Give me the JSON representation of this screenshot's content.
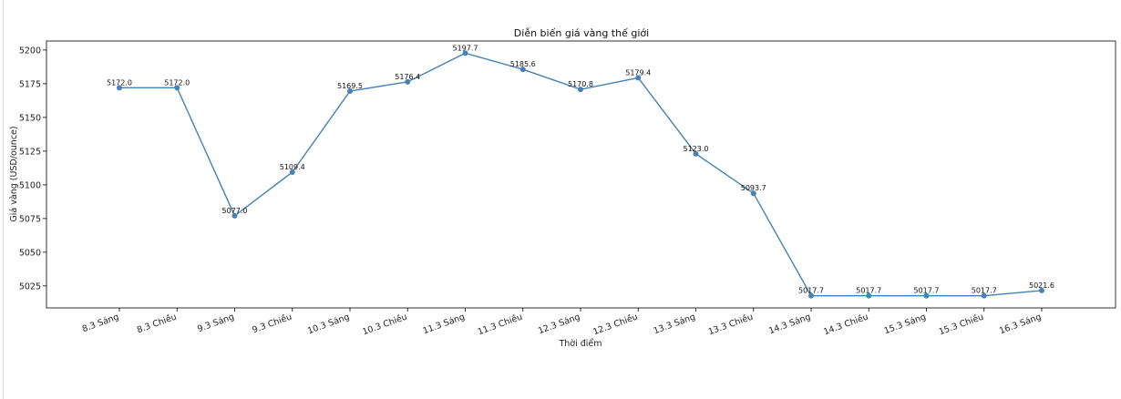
{
  "chart_data": {
    "type": "line",
    "title": "Diễn biến giá vàng thế giới",
    "xlabel": "Thời điểm",
    "ylabel": "Giá vàng (USD/ounce)",
    "categories": [
      "8.3 Sáng",
      "8.3 Chiều",
      "9.3 Sáng",
      "9.3 Chiều",
      "10.3 Sáng",
      "10.3 Chiều",
      "11.3 Sáng",
      "11.3 Chiều",
      "12.3 Sáng",
      "12.3 Chiều",
      "13.3 Sáng",
      "13.3 Chiều",
      "14.3 Sáng",
      "14.3 Chiều",
      "15.3 Sáng",
      "15.3 Chiều",
      "16.3 Sáng"
    ],
    "values": [
      5172.0,
      5172.0,
      5077.0,
      5109.4,
      5169.5,
      5176.4,
      5197.7,
      5185.6,
      5170.8,
      5179.4,
      5123.0,
      5093.7,
      5017.7,
      5017.7,
      5017.7,
      5017.7,
      5021.6
    ],
    "data_labels": [
      "5172.0",
      "5172.0",
      "5077.0",
      "5109.4",
      "5169.5",
      "5176.4",
      "5197.7",
      "5185.6",
      "5170.8",
      "5179.4",
      "5123.0",
      "5093.7",
      "5017.7",
      "5017.7",
      "5017.7",
      "5017.7",
      "5021.6"
    ],
    "yticks": [
      5025,
      5050,
      5075,
      5100,
      5125,
      5150,
      5175,
      5200
    ],
    "ytick_labels": [
      "5025",
      "5050",
      "5075",
      "5100",
      "5125",
      "5150",
      "5175",
      "5200"
    ],
    "ylim": [
      5008.7,
      5206.7
    ],
    "grid": false,
    "line_color": "#4682b4"
  }
}
